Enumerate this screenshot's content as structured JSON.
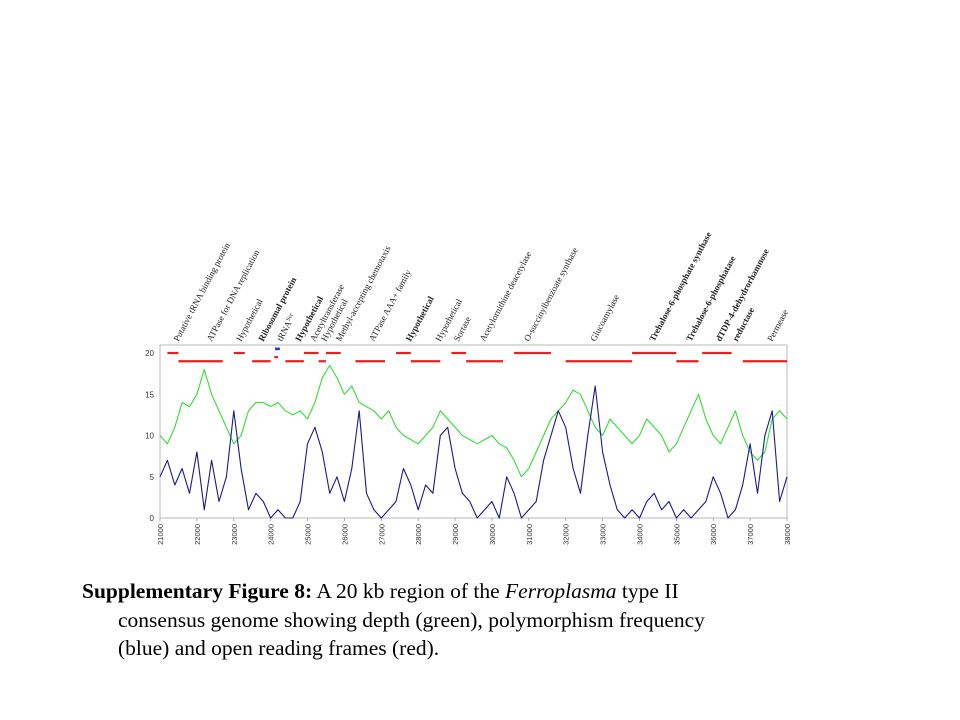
{
  "chart_data": {
    "type": "line",
    "xlim": [
      21000,
      38000
    ],
    "ylim": [
      0,
      20
    ],
    "x_ticks": [
      "21000",
      "22000",
      "23000",
      "24000",
      "25000",
      "26000",
      "27000",
      "28000",
      "29000",
      "30000",
      "31000",
      "32000",
      "33000",
      "34000",
      "35000",
      "36000",
      "37000",
      "38000"
    ],
    "y_ticks": [
      "0",
      "5",
      "10",
      "15",
      "20"
    ],
    "grid": false,
    "series": [
      {
        "color": "#33dd33",
        "x": [
          21000,
          21200,
          21400,
          21600,
          21800,
          22000,
          22200,
          22400,
          22600,
          22800,
          23000,
          23200,
          23400,
          23600,
          23800,
          24000,
          24200,
          24400,
          24600,
          24800,
          25000,
          25200,
          25400,
          25600,
          25800,
          26000,
          26200,
          26400,
          26600,
          26800,
          27000,
          27200,
          27400,
          27600,
          27800,
          28000,
          28200,
          28400,
          28600,
          28800,
          29000,
          29200,
          29400,
          29600,
          29800,
          30000,
          30200,
          30400,
          30600,
          30800,
          31000,
          31200,
          31400,
          31600,
          31800,
          32000,
          32200,
          32400,
          32600,
          32800,
          33000,
          33200,
          33400,
          33600,
          33800,
          34000,
          34200,
          34400,
          34600,
          34800,
          35000,
          35200,
          35400,
          35600,
          35800,
          36000,
          36200,
          36400,
          36600,
          36800,
          37000,
          37200,
          37400,
          37600,
          37800,
          38000
        ],
        "values": [
          10,
          9,
          11,
          14,
          13.5,
          15,
          18,
          15,
          13,
          11,
          9,
          10,
          13,
          14,
          14,
          13.5,
          14,
          13,
          12.5,
          13,
          12,
          14,
          17,
          18.5,
          17,
          15,
          16,
          14,
          13.5,
          13,
          12,
          13,
          11,
          10,
          9.5,
          9,
          10,
          11,
          13,
          12,
          11,
          10,
          9.5,
          9,
          9.5,
          10,
          9,
          8.5,
          7,
          5,
          6,
          8,
          10,
          12,
          13,
          14,
          15.5,
          15,
          13,
          11,
          10,
          12,
          11,
          10,
          9,
          10,
          12,
          11,
          10,
          8,
          9,
          11,
          13,
          15,
          12,
          10,
          9,
          11,
          13,
          10,
          8,
          7,
          8,
          12,
          13,
          12
        ]
      },
      {
        "color": "#1a1a8c",
        "x": [
          21000,
          21200,
          21400,
          21600,
          21800,
          22000,
          22200,
          22400,
          22600,
          22800,
          23000,
          23200,
          23400,
          23600,
          23800,
          24000,
          24200,
          24400,
          24600,
          24800,
          25000,
          25200,
          25400,
          25600,
          25800,
          26000,
          26200,
          26400,
          26600,
          26800,
          27000,
          27200,
          27400,
          27600,
          27800,
          28000,
          28200,
          28400,
          28600,
          28800,
          29000,
          29200,
          29400,
          29600,
          29800,
          30000,
          30200,
          30400,
          30600,
          30800,
          31000,
          31200,
          31400,
          31600,
          31800,
          32000,
          32200,
          32400,
          32600,
          32800,
          33000,
          33200,
          33400,
          33600,
          33800,
          34000,
          34200,
          34400,
          34600,
          34800,
          35000,
          35200,
          35400,
          35600,
          35800,
          36000,
          36200,
          36400,
          36600,
          36800,
          37000,
          37200,
          37400,
          37600,
          37800,
          38000
        ],
        "values": [
          5,
          7,
          4,
          6,
          3,
          8,
          1,
          7,
          2,
          5,
          13,
          6,
          1,
          3,
          2,
          0,
          1,
          0,
          0,
          2,
          9,
          11,
          8,
          3,
          5,
          2,
          6,
          13,
          3,
          1,
          0,
          1,
          2,
          6,
          4,
          1,
          4,
          3,
          10,
          11,
          6,
          3,
          2,
          0,
          1,
          2,
          0,
          5,
          3,
          0,
          1,
          2,
          7,
          10,
          13,
          11,
          6,
          3,
          10,
          16,
          8,
          4,
          1,
          0,
          1,
          0,
          2,
          3,
          1,
          2,
          0,
          1,
          0,
          1,
          2,
          5,
          3,
          0,
          1,
          4,
          9,
          3,
          10,
          13,
          2,
          5
        ]
      }
    ],
    "orf_segments": [
      [
        21200,
        21500,
        20
      ],
      [
        21500,
        22700,
        19
      ],
      [
        23000,
        23300,
        20
      ],
      [
        23500,
        24000,
        19
      ],
      [
        24100,
        24200,
        19.5
      ],
      [
        24400,
        24900,
        19
      ],
      [
        24900,
        25300,
        20
      ],
      [
        25300,
        25500,
        19
      ],
      [
        25500,
        25900,
        20
      ],
      [
        26300,
        27100,
        19
      ],
      [
        27400,
        27800,
        20
      ],
      [
        27800,
        28600,
        19
      ],
      [
        28900,
        29300,
        20
      ],
      [
        29300,
        30300,
        19
      ],
      [
        30600,
        31600,
        20
      ],
      [
        32000,
        33800,
        19
      ],
      [
        33800,
        35000,
        20
      ],
      [
        35000,
        35600,
        19
      ],
      [
        35700,
        36500,
        20
      ],
      [
        36800,
        38000,
        19
      ]
    ],
    "gene_labels": [
      {
        "text": "Putative tRNA binding protein",
        "x": 21500,
        "bold": false
      },
      {
        "text": "ATPase for DNA replication",
        "x": 22400,
        "bold": false
      },
      {
        "text": "Hypothetical",
        "x": 23200,
        "bold": false
      },
      {
        "text": "Ribosomal protein",
        "x": 23800,
        "bold": true
      },
      {
        "text": "tRNA",
        "sup": "Ser",
        "x": 24300,
        "bold": false
      },
      {
        "text": "Hypothetical",
        "x": 24800,
        "bold": true
      },
      {
        "text": "Acetyltransferase",
        "x": 25200,
        "bold": false
      },
      {
        "text": "Hypothetical",
        "x": 25500,
        "bold": false
      },
      {
        "text": "Methyl-accepting chemotaxis",
        "x": 25900,
        "bold": false
      },
      {
        "text": "ATPase AAA+ family",
        "x": 26800,
        "bold": false
      },
      {
        "text": "Hypothetical",
        "x": 27800,
        "bold": true
      },
      {
        "text": "Hypothetical",
        "x": 28600,
        "bold": false
      },
      {
        "text": "Sortase",
        "x": 29100,
        "bold": false
      },
      {
        "text": "Acetylornithine deacetylase",
        "x": 29800,
        "bold": false
      },
      {
        "text": "O-succinylbenzoate synthase",
        "x": 31000,
        "bold": false
      },
      {
        "text": "Glucoamylase",
        "x": 32800,
        "bold": false
      },
      {
        "text": "Trehalose-6-phosphate synthase",
        "x": 34400,
        "bold": true
      },
      {
        "text": "Trehalose-6-phosphatase",
        "x": 35400,
        "bold": true
      },
      {
        "text": "dTDP-4-dehydrorhamnose",
        "x": 36200,
        "bold": true
      },
      {
        "text": "reductase",
        "x": 36650,
        "bold": true
      },
      {
        "text": "Permease",
        "x": 37600,
        "bold": false
      }
    ]
  },
  "caption": {
    "label": "Supplementary Figure 8:",
    "part1": " A 20 kb region of the ",
    "organism": "Ferroplasma",
    "part2": " type II",
    "line2": "consensus genome showing depth (green), polymorphism frequency",
    "line3": "(blue) and open reading frames (red)."
  }
}
